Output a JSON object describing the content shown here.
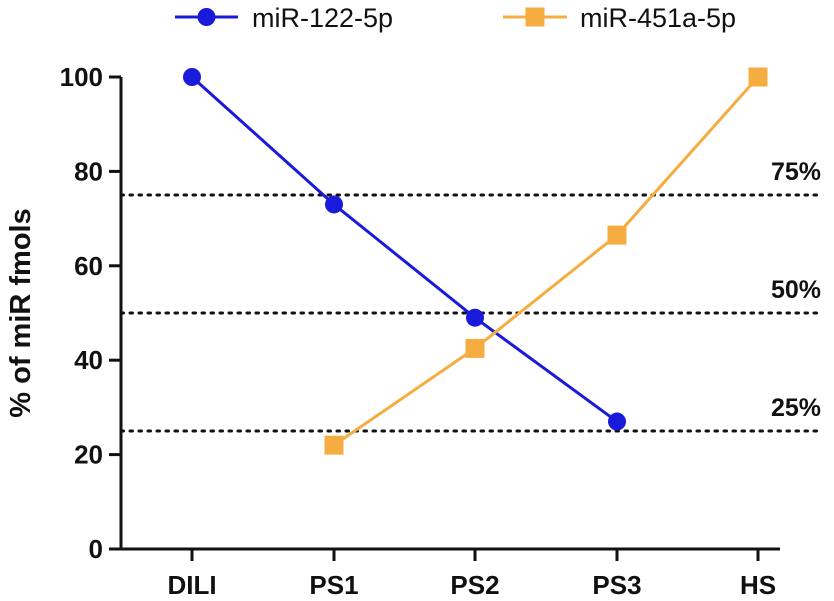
{
  "chart_data": {
    "type": "line",
    "title": "",
    "xlabel": "",
    "ylabel": "% of miR fmols",
    "categories": [
      "DILI",
      "PS1",
      "PS2",
      "PS3",
      "HS"
    ],
    "ylim": [
      0,
      100
    ],
    "yticks": [
      0,
      20,
      40,
      60,
      80,
      100
    ],
    "grid": false,
    "legend_position": "top",
    "series": [
      {
        "name": "miR-122-5p",
        "color": "#1a1adb",
        "marker": "circle",
        "values": [
          100,
          73,
          49,
          27,
          null
        ]
      },
      {
        "name": "miR-451a-5p",
        "color": "#f5ad42",
        "marker": "square",
        "values": [
          null,
          22,
          42.5,
          66.5,
          100
        ]
      }
    ],
    "reference_lines": [
      {
        "value": 75,
        "label": "75%"
      },
      {
        "value": 50,
        "label": "50%"
      },
      {
        "value": 25,
        "label": "25%"
      }
    ]
  }
}
